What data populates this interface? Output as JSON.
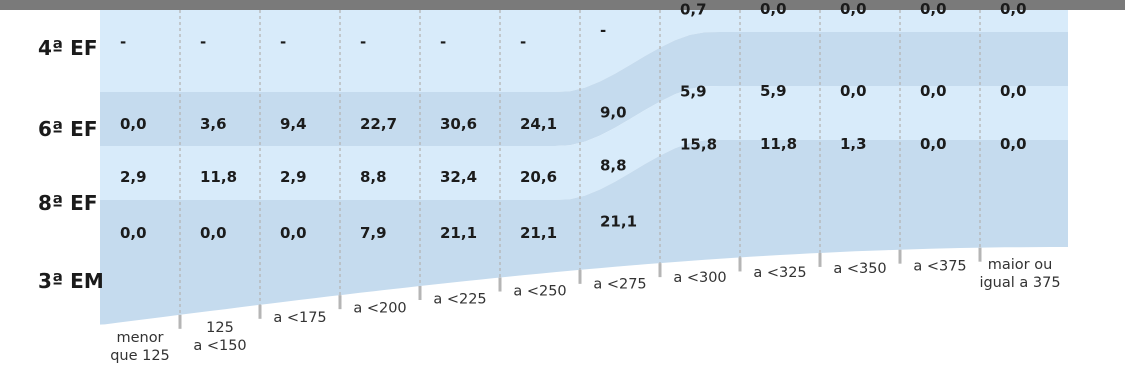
{
  "chart_data": {
    "type": "table",
    "title": "",
    "rows": [
      "4ª EF",
      "6ª EF",
      "8ª EF",
      "3ª EM"
    ],
    "columns": [
      [
        "menor",
        "que 125"
      ],
      [
        "125",
        "a <150"
      ],
      [
        "a <175"
      ],
      [
        "a <200"
      ],
      [
        "a <225"
      ],
      [
        "a <250"
      ],
      [
        "a <275"
      ],
      [
        "a <300"
      ],
      [
        "a <325"
      ],
      [
        "a <350"
      ],
      [
        "a <375"
      ],
      [
        "maior ou",
        "igual a 375"
      ]
    ],
    "values": [
      [
        "-",
        "-",
        "-",
        "-",
        "-",
        "-",
        "-",
        "0,7",
        "0,0",
        "0,0",
        "0,0",
        "0,0"
      ],
      [
        "0,0",
        "3,6",
        "9,4",
        "22,7",
        "30,6",
        "24,1",
        "9,0",
        "5,9",
        "5,9",
        "0,0",
        "0,0",
        "0,0"
      ],
      [
        "2,9",
        "11,8",
        "2,9",
        "8,8",
        "32,4",
        "20,6",
        "8,8",
        "15,8",
        "11,8",
        "1,3",
        "0,0",
        "0,0"
      ],
      [
        "0,0",
        "0,0",
        "0,0",
        "7,9",
        "21,1",
        "21,1",
        "21,1",
        "",
        "",
        "",
        "",
        ""
      ]
    ],
    "colors": {
      "band_light": "#d8ebfa",
      "band_dark": "#c5dbee",
      "top_bar": "#7a7a7a",
      "divider": "#b5b5b5"
    }
  }
}
